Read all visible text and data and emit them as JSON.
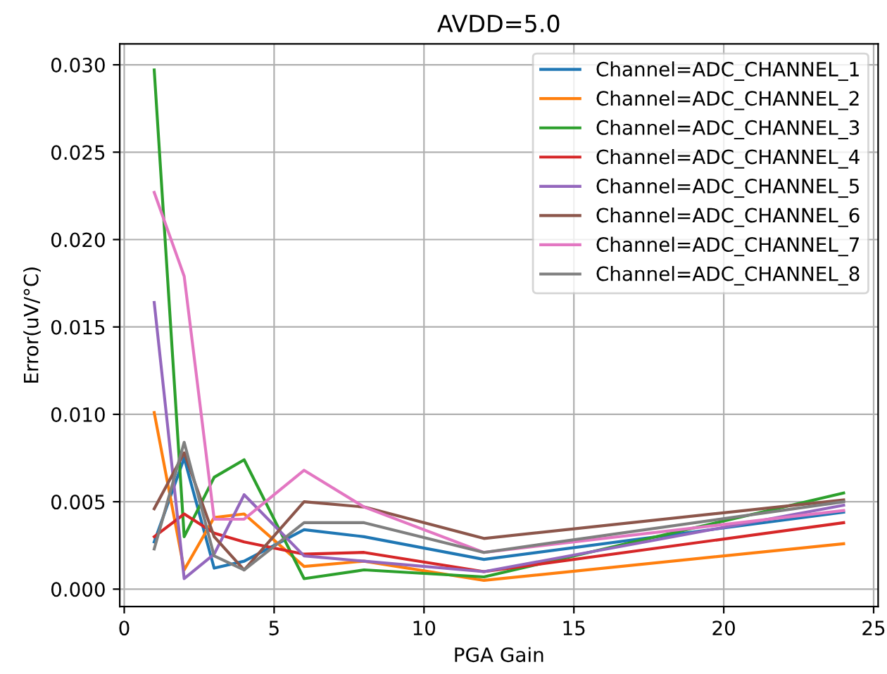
{
  "chart_data": {
    "type": "line",
    "title": "AVDD=5.0",
    "xlabel": "PGA Gain",
    "ylabel": "Error(uV/°C)",
    "x": [
      1,
      2,
      3,
      4,
      6,
      8,
      12,
      24
    ],
    "xlim": [
      -0.15,
      25.15
    ],
    "xticks": [
      0,
      5,
      10,
      15,
      20,
      25
    ],
    "ylim": [
      -0.001,
      0.0312
    ],
    "yticks": [
      {
        "value": 0,
        "label": "0.000"
      },
      {
        "value": 0.005,
        "label": "0.005"
      },
      {
        "value": 0.01,
        "label": "0.010"
      },
      {
        "value": 0.015,
        "label": "0.015"
      },
      {
        "value": 0.02,
        "label": "0.020"
      },
      {
        "value": 0.025,
        "label": "0.025"
      },
      {
        "value": 0.03,
        "label": "0.030"
      }
    ],
    "grid": true,
    "legend": "top right",
    "series": [
      {
        "name": "Channel=ADC_CHANNEL_1",
        "color": "#1f77b4",
        "values": [
          0.0027,
          0.0075,
          0.0012,
          0.0016,
          0.0034,
          0.003,
          0.0017,
          0.0044
        ]
      },
      {
        "name": "Channel=ADC_CHANNEL_2",
        "color": "#ff7f0e",
        "values": [
          0.0101,
          0.0011,
          0.0041,
          0.0043,
          0.0013,
          0.0016,
          0.0005,
          0.0026
        ]
      },
      {
        "name": "Channel=ADC_CHANNEL_3",
        "color": "#2ca02c",
        "values": [
          0.0297,
          0.003,
          0.0064,
          0.0074,
          0.0006,
          0.0011,
          0.0007,
          0.0055
        ]
      },
      {
        "name": "Channel=ADC_CHANNEL_4",
        "color": "#d62728",
        "values": [
          0.003,
          0.0043,
          0.0032,
          0.0027,
          0.002,
          0.0021,
          0.001,
          0.0038
        ]
      },
      {
        "name": "Channel=ADC_CHANNEL_5",
        "color": "#9467bd",
        "values": [
          0.0164,
          0.0006,
          0.002,
          0.0054,
          0.0019,
          0.0016,
          0.001,
          0.0048
        ]
      },
      {
        "name": "Channel=ADC_CHANNEL_6",
        "color": "#8c564b",
        "values": [
          0.0046,
          0.0078,
          0.003,
          0.0011,
          0.005,
          0.0047,
          0.0029,
          0.0051
        ]
      },
      {
        "name": "Channel=ADC_CHANNEL_7",
        "color": "#e377c2",
        "values": [
          0.0227,
          0.0179,
          0.004,
          0.004,
          0.0068,
          0.0047,
          0.0021,
          0.0045
        ]
      },
      {
        "name": "Channel=ADC_CHANNEL_8",
        "color": "#7f7f7f",
        "values": [
          0.0023,
          0.0084,
          0.0019,
          0.0011,
          0.0038,
          0.0038,
          0.0021,
          0.005
        ]
      }
    ]
  }
}
